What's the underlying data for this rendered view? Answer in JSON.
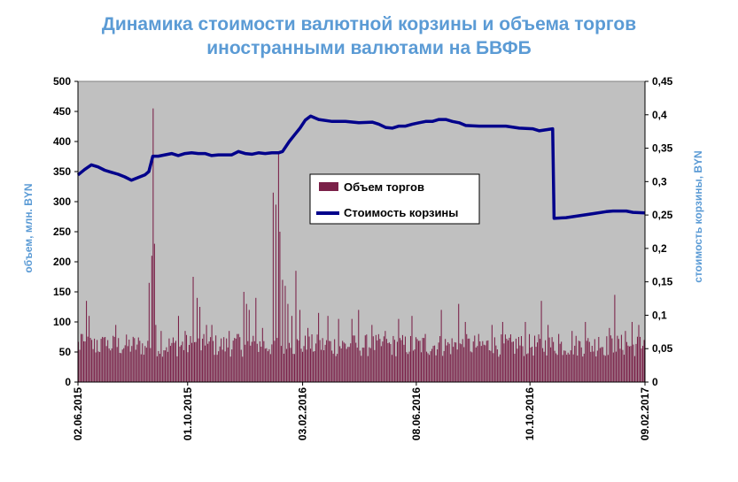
{
  "chart_data": {
    "type": "bar+line",
    "title": [
      "Динамика стоимости валютной корзины и объема торгов",
      "иностранными валютами на БВФБ"
    ],
    "ylabel_left": "объем, млн. BYN",
    "ylabel_right": "стоимость корзины, BYN",
    "ylim_left": [
      0,
      500
    ],
    "ylim_right": [
      0,
      0.45
    ],
    "yticks_left": [
      "0",
      "50",
      "100",
      "150",
      "200",
      "250",
      "300",
      "350",
      "400",
      "450",
      "500"
    ],
    "yticks_right": [
      "0",
      "0,05",
      "0,1",
      "0,15",
      "0,2",
      "0,25",
      "0,3",
      "0,35",
      "0,4",
      "0,45"
    ],
    "x_tick_labels": [
      "02.06.2015",
      "01.10.2015",
      "03.02.2016",
      "08.06.2016",
      "10.10.2016",
      "09.02.2017"
    ],
    "x_tick_positions": [
      0,
      82,
      168,
      253,
      338,
      424
    ],
    "n_days": 425,
    "legend": {
      "placement": "center-right",
      "items": [
        "Объем торгов",
        "Стоимость корзины"
      ]
    },
    "colors": {
      "plot_bg": "#c0c0c0",
      "bar": "#7a2048",
      "line": "#00008b",
      "title": "#5b9bd5",
      "axis_label": "#5b9bd5"
    },
    "series": [
      {
        "name": "Объем торгов",
        "type": "bar",
        "axis": "left",
        "peaks": [
          [
            2,
            80
          ],
          [
            6,
            135
          ],
          [
            8,
            110
          ],
          [
            14,
            70
          ],
          [
            20,
            75
          ],
          [
            28,
            95
          ],
          [
            40,
            60
          ],
          [
            50,
            60
          ],
          [
            53,
            165
          ],
          [
            55,
            210
          ],
          [
            56,
            455
          ],
          [
            57,
            230
          ],
          [
            58,
            95
          ],
          [
            62,
            85
          ],
          [
            70,
            65
          ],
          [
            75,
            110
          ],
          [
            80,
            85
          ],
          [
            86,
            175
          ],
          [
            89,
            140
          ],
          [
            91,
            125
          ],
          [
            96,
            95
          ],
          [
            100,
            95
          ],
          [
            113,
            85
          ],
          [
            120,
            80
          ],
          [
            124,
            150
          ],
          [
            126,
            130
          ],
          [
            128,
            120
          ],
          [
            133,
            140
          ],
          [
            138,
            90
          ],
          [
            146,
            315
          ],
          [
            148,
            295
          ],
          [
            150,
            380
          ],
          [
            151,
            250
          ],
          [
            153,
            170
          ],
          [
            155,
            160
          ],
          [
            157,
            130
          ],
          [
            160,
            110
          ],
          [
            163,
            185
          ],
          [
            166,
            120
          ],
          [
            172,
            90
          ],
          [
            180,
            115
          ],
          [
            187,
            110
          ],
          [
            195,
            105
          ],
          [
            205,
            105
          ],
          [
            210,
            120
          ],
          [
            220,
            95
          ],
          [
            230,
            85
          ],
          [
            240,
            105
          ],
          [
            250,
            110
          ],
          [
            260,
            80
          ],
          [
            272,
            120
          ],
          [
            285,
            130
          ],
          [
            290,
            100
          ],
          [
            300,
            80
          ],
          [
            310,
            95
          ],
          [
            318,
            100
          ],
          [
            330,
            75
          ],
          [
            335,
            100
          ],
          [
            347,
            135
          ],
          [
            352,
            95
          ],
          [
            360,
            80
          ],
          [
            370,
            85
          ],
          [
            380,
            100
          ],
          [
            390,
            75
          ],
          [
            398,
            90
          ],
          [
            402,
            145
          ],
          [
            410,
            85
          ],
          [
            415,
            100
          ],
          [
            420,
            95
          ],
          [
            424,
            70
          ]
        ],
        "base": 60
      },
      {
        "name": "Стоимость корзины",
        "type": "line",
        "axis": "right",
        "points": [
          [
            0,
            0.31
          ],
          [
            5,
            0.318
          ],
          [
            10,
            0.325
          ],
          [
            15,
            0.322
          ],
          [
            20,
            0.317
          ],
          [
            25,
            0.314
          ],
          [
            30,
            0.311
          ],
          [
            35,
            0.307
          ],
          [
            40,
            0.302
          ],
          [
            45,
            0.306
          ],
          [
            50,
            0.31
          ],
          [
            53,
            0.315
          ],
          [
            56,
            0.338
          ],
          [
            60,
            0.338
          ],
          [
            65,
            0.34
          ],
          [
            70,
            0.342
          ],
          [
            75,
            0.339
          ],
          [
            80,
            0.342
          ],
          [
            85,
            0.343
          ],
          [
            90,
            0.342
          ],
          [
            95,
            0.342
          ],
          [
            100,
            0.339
          ],
          [
            105,
            0.34
          ],
          [
            110,
            0.34
          ],
          [
            115,
            0.34
          ],
          [
            120,
            0.345
          ],
          [
            125,
            0.342
          ],
          [
            130,
            0.341
          ],
          [
            135,
            0.343
          ],
          [
            140,
            0.342
          ],
          [
            145,
            0.343
          ],
          [
            150,
            0.343
          ],
          [
            153,
            0.345
          ],
          [
            158,
            0.36
          ],
          [
            162,
            0.37
          ],
          [
            166,
            0.38
          ],
          [
            170,
            0.392
          ],
          [
            174,
            0.398
          ],
          [
            180,
            0.393
          ],
          [
            190,
            0.39
          ],
          [
            200,
            0.39
          ],
          [
            210,
            0.388
          ],
          [
            220,
            0.389
          ],
          [
            225,
            0.386
          ],
          [
            230,
            0.381
          ],
          [
            235,
            0.38
          ],
          [
            240,
            0.383
          ],
          [
            245,
            0.383
          ],
          [
            250,
            0.386
          ],
          [
            255,
            0.388
          ],
          [
            260,
            0.39
          ],
          [
            265,
            0.39
          ],
          [
            270,
            0.393
          ],
          [
            275,
            0.393
          ],
          [
            280,
            0.39
          ],
          [
            285,
            0.388
          ],
          [
            290,
            0.384
          ],
          [
            300,
            0.383
          ],
          [
            310,
            0.383
          ],
          [
            320,
            0.383
          ],
          [
            330,
            0.38
          ],
          [
            340,
            0.379
          ],
          [
            345,
            0.376
          ],
          [
            355,
            0.379
          ],
          [
            356,
            0.245
          ],
          [
            365,
            0.246
          ],
          [
            375,
            0.249
          ],
          [
            385,
            0.252
          ],
          [
            395,
            0.255
          ],
          [
            400,
            0.256
          ],
          [
            410,
            0.256
          ],
          [
            415,
            0.254
          ],
          [
            424,
            0.253
          ]
        ]
      }
    ]
  }
}
